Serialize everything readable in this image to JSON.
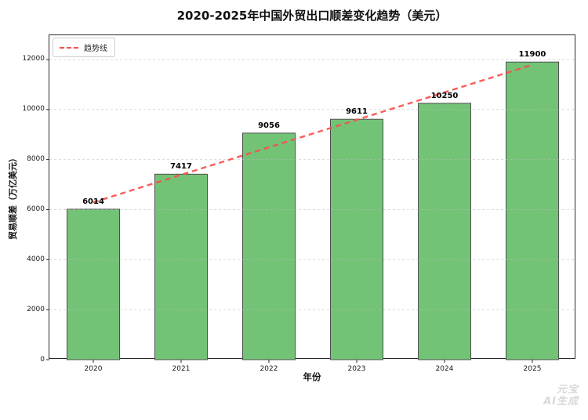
{
  "watermark": {
    "line1": "元宝",
    "line2": "AI生成"
  },
  "chart_data": {
    "type": "bar",
    "title": "2020-2025年中国外贸出口顺差变化趋势（美元）",
    "xlabel": "年份",
    "ylabel": "贸易顺差（万亿美元）",
    "categories": [
      "2020",
      "2021",
      "2022",
      "2023",
      "2024",
      "2025"
    ],
    "values": [
      6014,
      7417,
      9056,
      9611,
      10250,
      11900
    ],
    "yticks": [
      0,
      2000,
      4000,
      6000,
      8000,
      10000,
      12000
    ],
    "ylim": [
      0,
      12970
    ],
    "grid": "horizontal-dashed",
    "legend_position": "upper-left",
    "bar_color": "#73c377",
    "bar_edge_color": "#4f4f4f",
    "grid_color": "rgba(185,185,185,0.55)",
    "axis_color": "#2b2b2b",
    "trend_line": {
      "label": "趋势线",
      "type": "linear",
      "style": "dashed",
      "color": "#f8504b",
      "endpoints_value": [
        6292,
        11790
      ]
    }
  }
}
